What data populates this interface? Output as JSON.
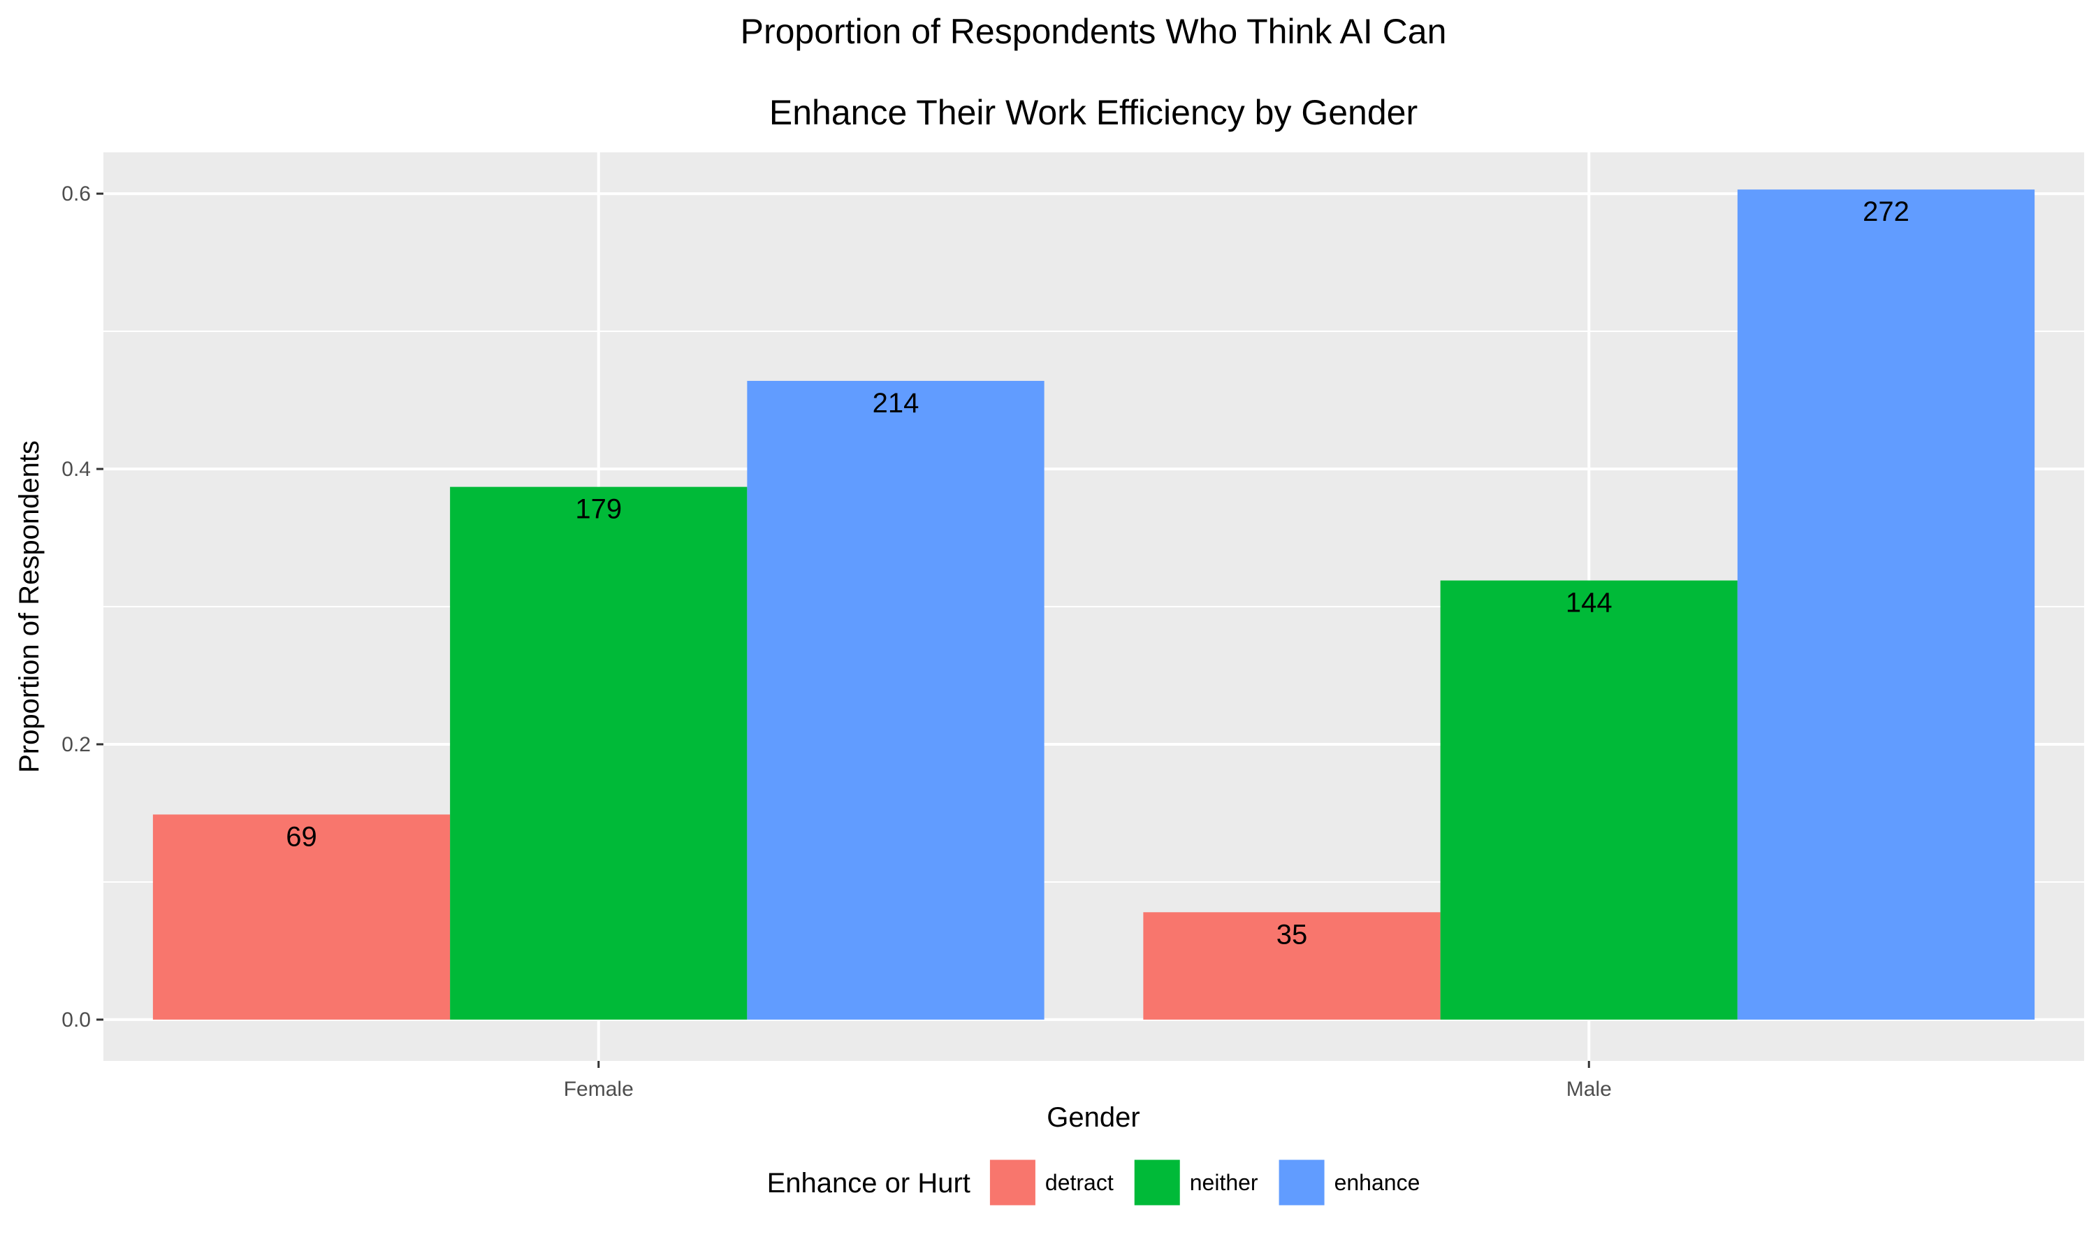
{
  "chart_data": {
    "type": "bar",
    "title_lines": [
      "Proportion of Respondents Who Think AI Can",
      "Enhance Their Work Efficiency by Gender"
    ],
    "xlabel": "Gender",
    "ylabel": "Proportion of Respondents",
    "categories": [
      "Female",
      "Male"
    ],
    "ylim": [
      -0.03,
      0.63
    ],
    "yticks": [
      0.0,
      0.2,
      0.4,
      0.6
    ],
    "ytick_labels": [
      "0.0",
      "0.2",
      "0.4",
      "0.6"
    ],
    "grid": true,
    "legend": {
      "title": "Enhance or Hurt",
      "placement": "bottom"
    },
    "series": [
      {
        "name": "detract",
        "color": "#F8766D",
        "values": [
          0.149,
          0.078
        ],
        "labels": [
          "69",
          "35"
        ]
      },
      {
        "name": "neither",
        "color": "#00BA38",
        "values": [
          0.387,
          0.319
        ],
        "labels": [
          "179",
          "144"
        ]
      },
      {
        "name": "enhance",
        "color": "#619CFF",
        "values": [
          0.464,
          0.603
        ],
        "labels": [
          "214",
          "272"
        ]
      }
    ]
  }
}
